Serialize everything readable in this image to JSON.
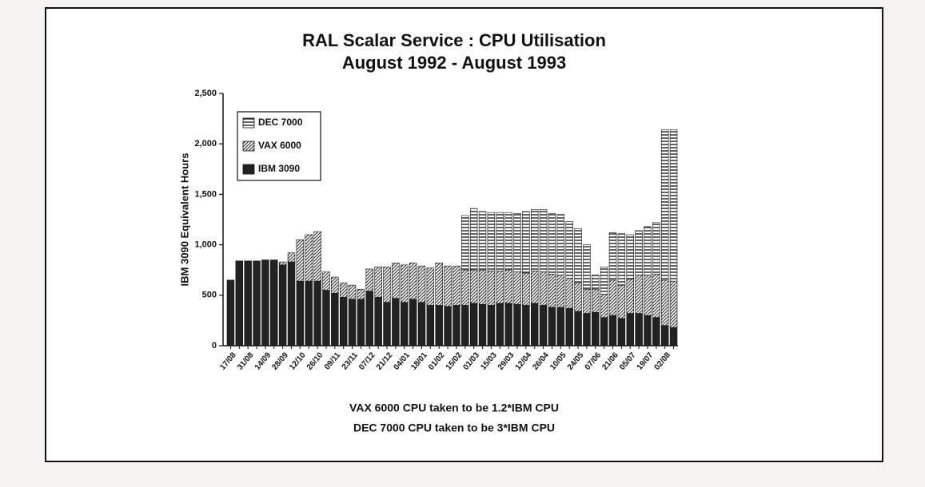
{
  "chart_data": {
    "type": "bar",
    "stacked": true,
    "title": "RAL Scalar Service : CPU Utilisation",
    "subtitle": "August 1992 - August 1993",
    "y_label": "IBM 3090 Equivalent Hours",
    "annotations": [
      "VAX 6000 CPU taken to be 1.2*IBM CPU",
      "DEC 7000 CPU taken to be 3*IBM CPU"
    ],
    "categories": [
      "17/08",
      null,
      "31/08",
      null,
      "14/09",
      null,
      "28/09",
      null,
      "12/10",
      null,
      "26/10",
      null,
      "09/11",
      null,
      "23/11",
      null,
      "07/12",
      null,
      "21/12",
      null,
      "04/01",
      null,
      "18/01",
      null,
      "01/02",
      null,
      "15/02",
      null,
      "01/03",
      null,
      "15/03",
      null,
      "29/03",
      null,
      "12/04",
      null,
      "26/04",
      null,
      "10/05",
      null,
      "24/05",
      null,
      "07/06",
      null,
      "21/06",
      null,
      "05/07",
      null,
      "19/07",
      null,
      "02/08",
      null
    ],
    "series": [
      {
        "name": "IBM 3090",
        "color": "#222222",
        "pattern": "solid",
        "values": [
          650,
          840,
          840,
          840,
          850,
          850,
          800,
          830,
          640,
          640,
          640,
          550,
          520,
          480,
          460,
          460,
          540,
          480,
          430,
          470,
          430,
          460,
          430,
          400,
          400,
          390,
          400,
          400,
          420,
          410,
          400,
          420,
          420,
          410,
          400,
          420,
          400,
          380,
          380,
          370,
          340,
          320,
          330,
          280,
          300,
          270,
          320,
          320,
          300,
          280,
          200,
          180
        ]
      },
      {
        "name": "VAX 6000",
        "color": "#222222",
        "pattern": "diagonal",
        "values": [
          0,
          0,
          0,
          0,
          0,
          0,
          30,
          90,
          410,
          460,
          490,
          180,
          160,
          140,
          140,
          100,
          220,
          300,
          350,
          350,
          370,
          360,
          360,
          370,
          420,
          400,
          390,
          350,
          330,
          340,
          340,
          320,
          330,
          320,
          320,
          320,
          330,
          330,
          320,
          300,
          280,
          240,
          230,
          230,
          350,
          330,
          340,
          380,
          400,
          430,
          450,
          460
        ]
      },
      {
        "name": "DEC 7000",
        "color": "#222222",
        "pattern": "horizontal",
        "values": [
          0,
          0,
          0,
          0,
          0,
          0,
          0,
          0,
          0,
          0,
          0,
          0,
          0,
          0,
          0,
          0,
          0,
          0,
          0,
          0,
          0,
          0,
          0,
          0,
          0,
          0,
          0,
          540,
          610,
          580,
          580,
          580,
          570,
          580,
          610,
          610,
          620,
          600,
          600,
          560,
          540,
          440,
          140,
          270,
          470,
          510,
          440,
          440,
          480,
          510,
          1490,
          1500
        ]
      }
    ],
    "ylim": [
      0,
      2500
    ],
    "yticks": [
      0,
      {
        "value": 500,
        "label": "500"
      },
      {
        "value": 1000,
        "label": "1,000"
      },
      {
        "value": 1500,
        "label": "1,500"
      },
      {
        "value": 2000,
        "label": "2,000"
      },
      {
        "value": 2500,
        "label": "2,500"
      }
    ],
    "legend": "upper left"
  }
}
